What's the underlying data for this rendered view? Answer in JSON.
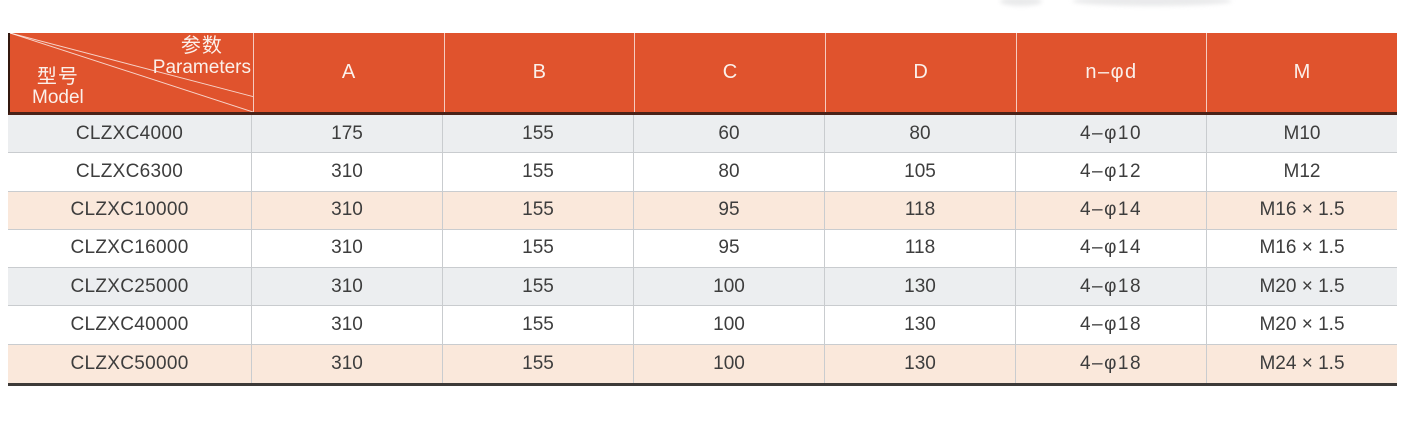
{
  "colors": {
    "header_bg": "#e0532d",
    "header_text": "#fbf0ea",
    "header_underline": "#4a2218",
    "bottom_border": "#3d3a38",
    "grid_line": "#c9cccf",
    "row_gray": "#eceef0",
    "row_white": "#ffffff",
    "row_peach": "#fae8db",
    "body_text": "#3d3d3d"
  },
  "table": {
    "corner": {
      "top_label_cn": "参数",
      "top_label_en": "Parameters",
      "bottom_label_cn": "型号",
      "bottom_label_en": "Model"
    },
    "columns": [
      "A",
      "B",
      "C",
      "D",
      "n–φd",
      "M"
    ],
    "rows": [
      {
        "model": "CLZXC4000",
        "a": "175",
        "b": "155",
        "c": "60",
        "d": "80",
        "nd": "4–φ10",
        "m": "M10",
        "bg": "gray"
      },
      {
        "model": "CLZXC6300",
        "a": "310",
        "b": "155",
        "c": "80",
        "d": "105",
        "nd": "4–φ12",
        "m": "M12",
        "bg": "white"
      },
      {
        "model": "CLZXC10000",
        "a": "310",
        "b": "155",
        "c": "95",
        "d": "118",
        "nd": "4–φ14",
        "m": "M16 × 1.5",
        "bg": "peach"
      },
      {
        "model": "CLZXC16000",
        "a": "310",
        "b": "155",
        "c": "95",
        "d": "118",
        "nd": "4–φ14",
        "m": "M16 × 1.5",
        "bg": "white"
      },
      {
        "model": "CLZXC25000",
        "a": "310",
        "b": "155",
        "c": "100",
        "d": "130",
        "nd": "4–φ18",
        "m": "M20 × 1.5",
        "bg": "gray"
      },
      {
        "model": "CLZXC40000",
        "a": "310",
        "b": "155",
        "c": "100",
        "d": "130",
        "nd": "4–φ18",
        "m": "M20 × 1.5",
        "bg": "white"
      },
      {
        "model": "CLZXC50000",
        "a": "310",
        "b": "155",
        "c": "100",
        "d": "130",
        "nd": "4–φ18",
        "m": "M24 × 1.5",
        "bg": "peach"
      }
    ]
  }
}
